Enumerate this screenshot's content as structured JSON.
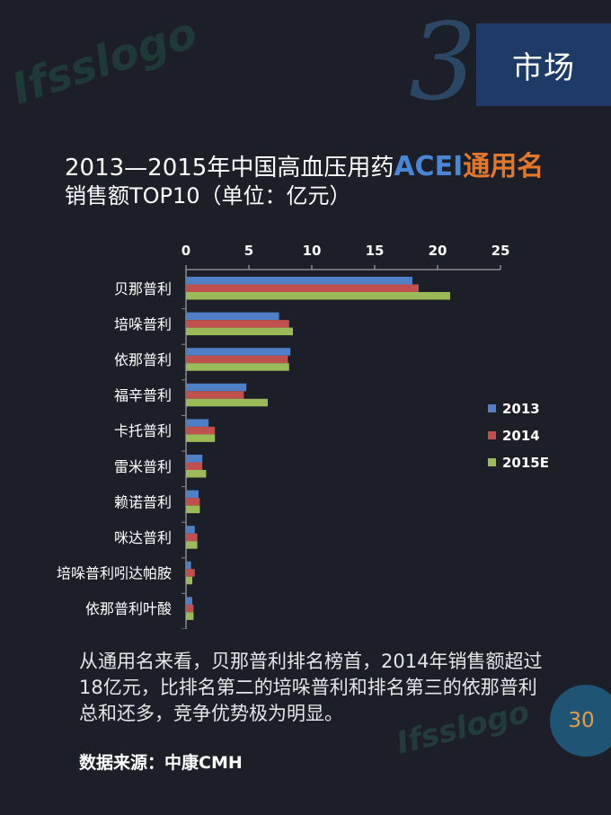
{
  "section": {
    "number": "3",
    "label": "市场"
  },
  "title": {
    "line1_prefix": "2013—2015年中国高血压用药",
    "line1_acei": "ACEI",
    "line1_tongyong": "通用名",
    "line2": "销售额TOP10（单位：亿元）"
  },
  "chart_data": {
    "type": "bar",
    "orientation": "horizontal",
    "categories": [
      "贝那普利",
      "培哚普利",
      "依那普利",
      "福辛普利",
      "卡托普利",
      "雷米普利",
      "赖诺普利",
      "咪达普利",
      "培哚普利吲达帕胺",
      "依那普利叶酸"
    ],
    "series": [
      {
        "name": "2013",
        "color": "#4f7fc4",
        "values": [
          18.0,
          7.4,
          8.3,
          4.8,
          1.8,
          1.3,
          1.0,
          0.7,
          0.4,
          0.5
        ]
      },
      {
        "name": "2014",
        "color": "#c0504d",
        "values": [
          18.5,
          8.2,
          8.1,
          4.6,
          2.3,
          1.3,
          1.1,
          0.9,
          0.7,
          0.6
        ]
      },
      {
        "name": "2015E",
        "color": "#9bbb59",
        "values": [
          21.0,
          8.5,
          8.2,
          6.5,
          2.3,
          1.6,
          1.1,
          0.9,
          0.5,
          0.6
        ]
      }
    ],
    "xlim": [
      0,
      25
    ],
    "xticks": [
      "0",
      "5",
      "10",
      "15",
      "20",
      "25"
    ],
    "axis_position": "top",
    "grid": false,
    "legend_position": "right"
  },
  "body_text": "从通用名来看，贝那普利排名榜首，2014年销售额超过18亿元，比排名第二的培哚普利和排名第三的依那普利总和还多，竞争优势极为明显。",
  "source": "数据来源：中康CMH",
  "page_number": "30"
}
